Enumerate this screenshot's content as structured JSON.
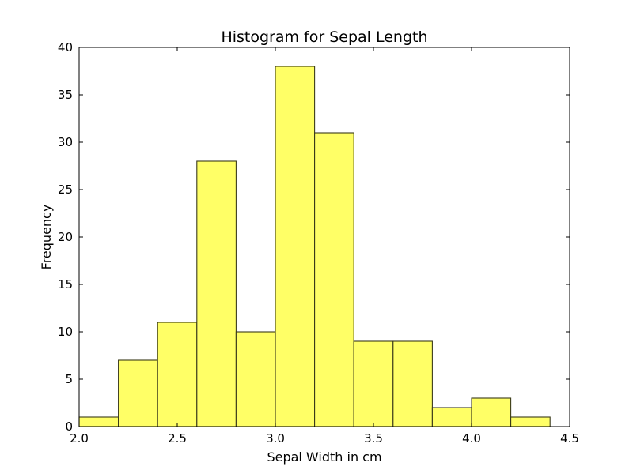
{
  "chart_data": {
    "type": "bar",
    "title": "Histogram for Sepal Length",
    "xlabel": "Sepal Width in cm",
    "ylabel": "Frequency",
    "xlim": [
      2.0,
      4.5
    ],
    "ylim": [
      0,
      40
    ],
    "xticks": [
      "2.0",
      "2.5",
      "3.0",
      "3.5",
      "4.0",
      "4.5"
    ],
    "yticks": [
      "0",
      "5",
      "10",
      "15",
      "20",
      "25",
      "30",
      "35",
      "40"
    ],
    "bins": [
      {
        "start": 2.0,
        "end": 2.2,
        "value": 1
      },
      {
        "start": 2.2,
        "end": 2.4,
        "value": 7
      },
      {
        "start": 2.4,
        "end": 2.6,
        "value": 11
      },
      {
        "start": 2.6,
        "end": 2.8,
        "value": 28
      },
      {
        "start": 2.8,
        "end": 3.0,
        "value": 10
      },
      {
        "start": 3.0,
        "end": 3.2,
        "value": 38
      },
      {
        "start": 3.2,
        "end": 3.4,
        "value": 31
      },
      {
        "start": 3.4,
        "end": 3.6,
        "value": 9
      },
      {
        "start": 3.6,
        "end": 3.8,
        "value": 9
      },
      {
        "start": 3.8,
        "end": 4.0,
        "value": 2
      },
      {
        "start": 4.0,
        "end": 4.2,
        "value": 3
      },
      {
        "start": 4.2,
        "end": 4.4,
        "value": 1
      }
    ],
    "bar_color": "#ffff66",
    "grid": false,
    "legend": "none"
  }
}
